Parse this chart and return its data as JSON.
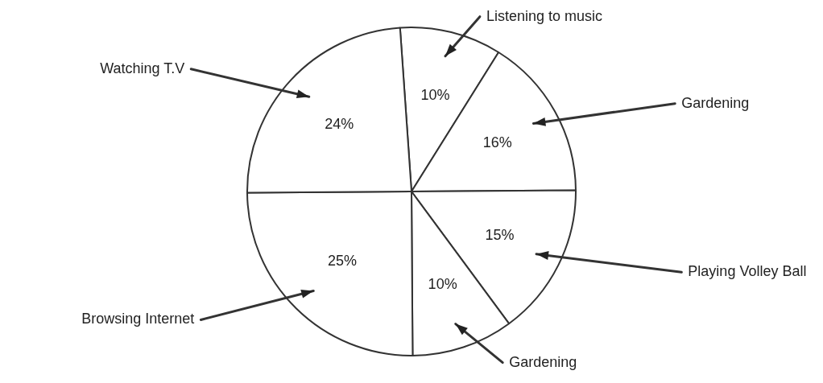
{
  "chart_data": {
    "type": "pie",
    "categories": [
      "Listening to music",
      "Gardening",
      "Playing Volley Ball",
      "Gardening",
      "Browsing Internet",
      "Watching T.V"
    ],
    "values": [
      10,
      16,
      15,
      10,
      25,
      24
    ],
    "value_labels": [
      "10%",
      "16%",
      "15%",
      "10%",
      "25%",
      "24%"
    ],
    "colors": [
      "#ffffff",
      "#ffffff",
      "#ffffff",
      "#ffffff",
      "#ffffff",
      "#ffffff"
    ]
  }
}
